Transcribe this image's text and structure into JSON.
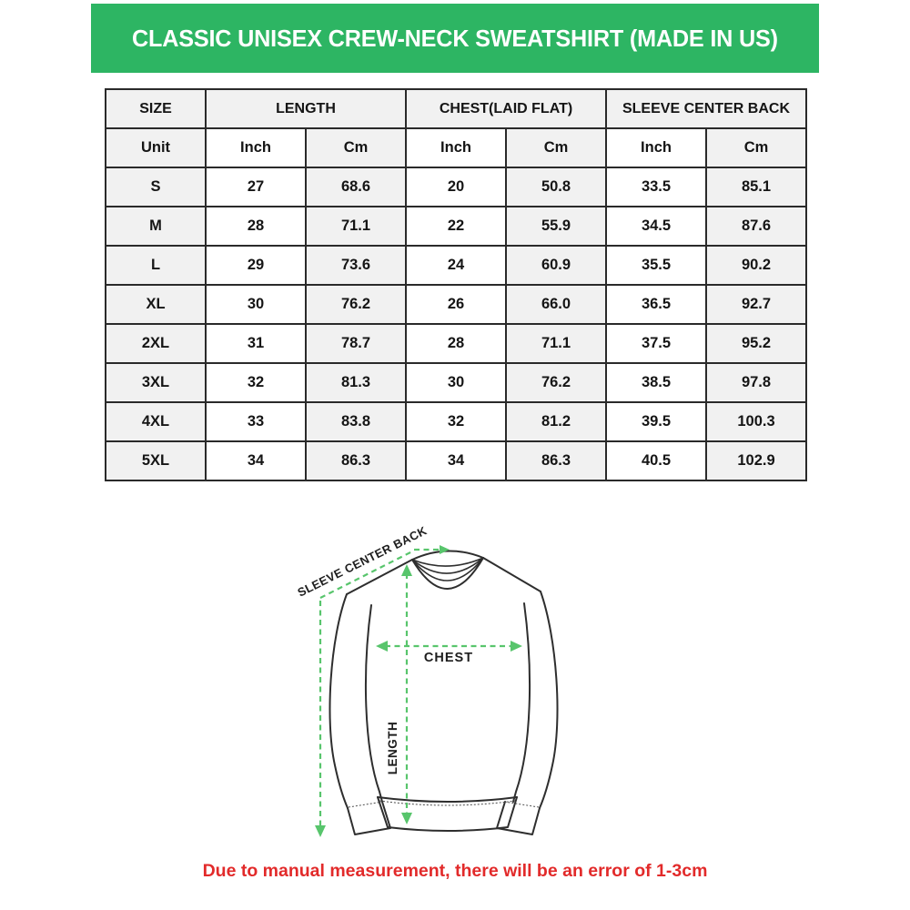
{
  "banner": {
    "title": "CLASSIC UNISEX CREW-NECK SWEATSHIRT (MADE IN US)",
    "bg_color": "#2db563",
    "text_color": "#ffffff"
  },
  "size_table": {
    "col_groups": [
      "SIZE",
      "LENGTH",
      "CHEST(LAID FLAT)",
      "SLEEVE CENTER BACK"
    ],
    "unit_row": [
      "Unit",
      "Inch",
      "Cm",
      "Inch",
      "Cm",
      "Inch",
      "Cm"
    ],
    "rows": [
      {
        "size": "S",
        "values": [
          "27",
          "68.6",
          "20",
          "50.8",
          "33.5",
          "85.1"
        ]
      },
      {
        "size": "M",
        "values": [
          "28",
          "71.1",
          "22",
          "55.9",
          "34.5",
          "87.6"
        ]
      },
      {
        "size": "L",
        "values": [
          "29",
          "73.6",
          "24",
          "60.9",
          "35.5",
          "90.2"
        ]
      },
      {
        "size": "XL",
        "values": [
          "30",
          "76.2",
          "26",
          "66.0",
          "36.5",
          "92.7"
        ]
      },
      {
        "size": "2XL",
        "values": [
          "31",
          "78.7",
          "28",
          "71.1",
          "37.5",
          "95.2"
        ]
      },
      {
        "size": "3XL",
        "values": [
          "32",
          "81.3",
          "30",
          "76.2",
          "38.5",
          "97.8"
        ]
      },
      {
        "size": "4XL",
        "values": [
          "33",
          "83.8",
          "32",
          "81.2",
          "39.5",
          "100.3"
        ]
      },
      {
        "size": "5XL",
        "values": [
          "34",
          "86.3",
          "34",
          "86.3",
          "40.5",
          "102.9"
        ]
      }
    ],
    "shade_color": "#f1f1f1",
    "border_color": "#2a2a2a"
  },
  "diagram": {
    "sleeve_label": "SLEEVE CENTER BACK",
    "chest_label": "CHEST",
    "length_label": "LENGTH",
    "dash_color": "#58c56c",
    "outline_color": "#2e2e2e"
  },
  "footnote": {
    "text": "Due to manual measurement, there will be an error of 1-3cm",
    "color": "#e22a2a"
  }
}
